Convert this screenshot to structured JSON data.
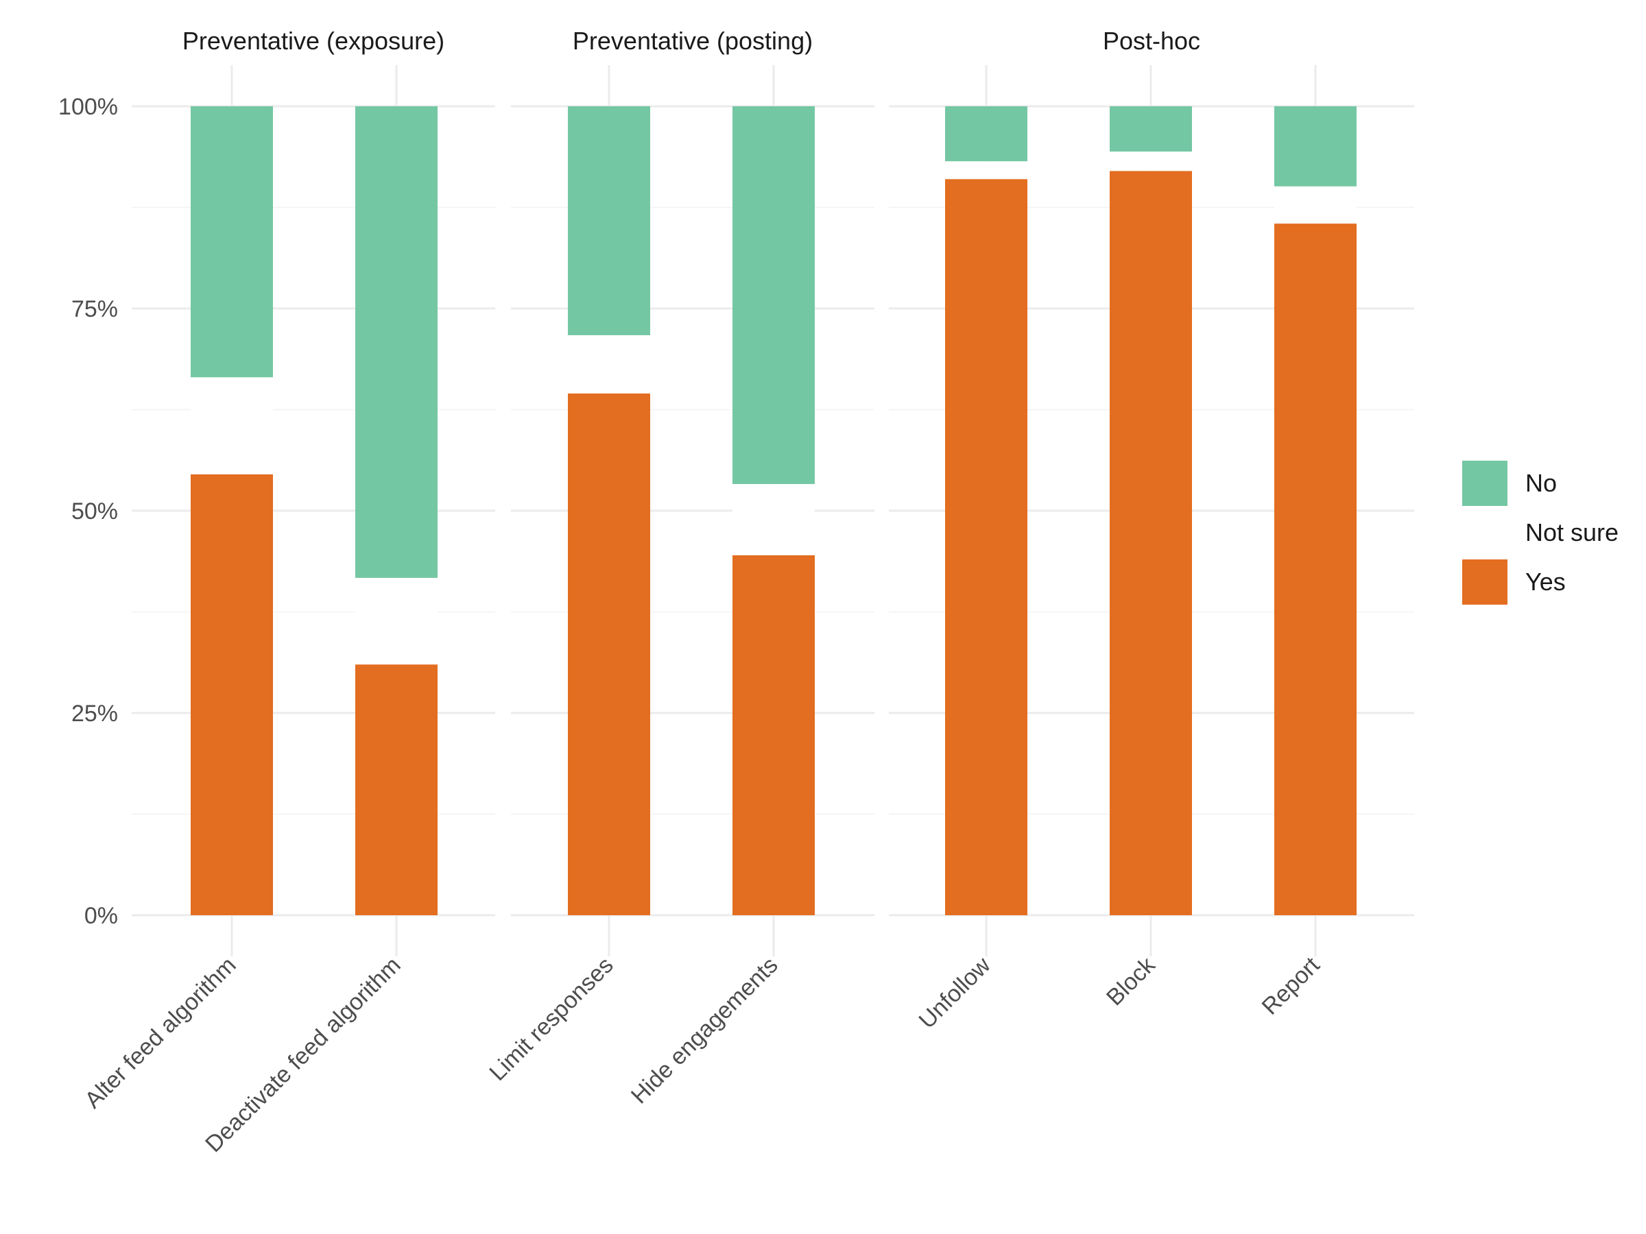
{
  "chart_data": {
    "type": "bar",
    "stacked": true,
    "percent": true,
    "ylim": [
      0,
      1
    ],
    "yticks": [
      0,
      0.25,
      0.5,
      0.75,
      1.0
    ],
    "ytick_labels": [
      "0%",
      "25%",
      "50%",
      "75%",
      "100%"
    ],
    "xlabel": "",
    "ylabel": "",
    "facets": [
      {
        "title": "Preventative (exposure)",
        "categories": [
          "Alter feed algorithm",
          "Deactivate feed algorithm"
        ]
      },
      {
        "title": "Preventative (posting)",
        "categories": [
          "Limit responses",
          "Hide engagements"
        ]
      },
      {
        "title": "Post-hoc",
        "categories": [
          "Unfollow",
          "Block",
          "Report"
        ]
      }
    ],
    "series": [
      {
        "name": "Yes",
        "color": "#e36d20",
        "values": [
          0.545,
          0.31,
          0.645,
          0.445,
          0.91,
          0.92,
          0.855
        ]
      },
      {
        "name": "Not sure",
        "color": "#ffffff",
        "values": [
          0.12,
          0.107,
          0.072,
          0.088,
          0.022,
          0.024,
          0.046
        ]
      },
      {
        "name": "No",
        "color": "#74c7a3",
        "values": [
          0.335,
          0.583,
          0.283,
          0.467,
          0.068,
          0.056,
          0.099
        ]
      }
    ],
    "legend": {
      "position": "right",
      "entries": [
        {
          "label": "No",
          "color": "#74c7a3"
        },
        {
          "label": "Not sure",
          "color": "#ffffff"
        },
        {
          "label": "Yes",
          "color": "#e36d20"
        }
      ]
    }
  }
}
